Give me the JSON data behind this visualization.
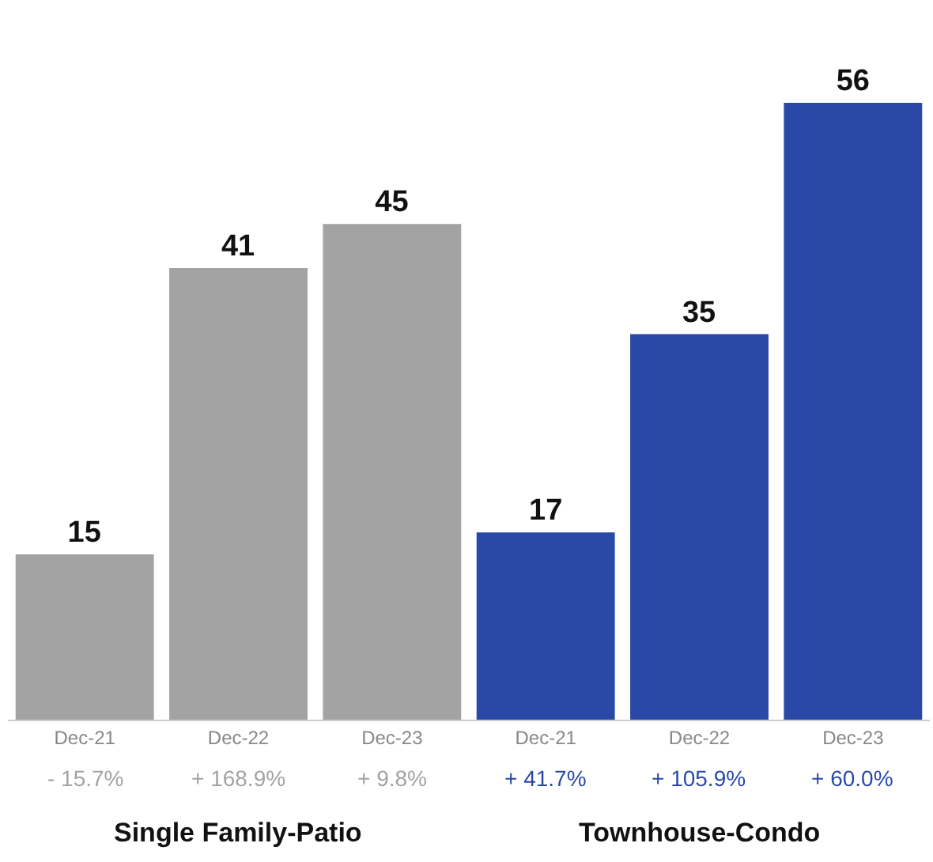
{
  "chart_data": {
    "type": "bar",
    "categories": [
      "Dec-21",
      "Dec-22",
      "Dec-23",
      "Dec-21",
      "Dec-22",
      "Dec-23"
    ],
    "values": [
      15,
      41,
      45,
      17,
      35,
      56
    ],
    "colors": [
      "#a3a3a3",
      "#a3a3a3",
      "#a3a3a3",
      "#2a49a6",
      "#2a49a6",
      "#2a49a6"
    ],
    "data_labels": true,
    "tick_labels": "x",
    "annotations": [
      "- 15.7%",
      "+ 168.9%",
      "+ 9.8%",
      "+ 41.7%",
      "+ 105.9%",
      "+ 60.0%",
      "Single Family-Patio",
      "Townhouse-Condo"
    ]
  }
}
